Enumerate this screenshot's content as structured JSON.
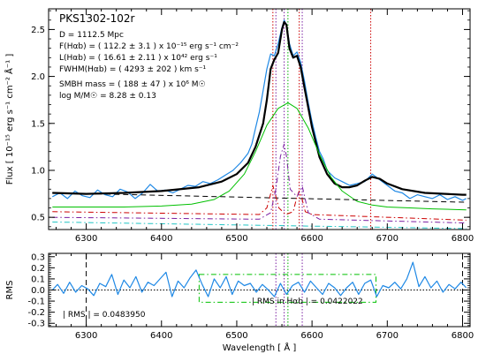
{
  "chart_data": [
    {
      "type": "line",
      "title": "PKS1302-102r",
      "ylabel": "Flux [ 10⁻¹⁵ erg s⁻¹ cm⁻² Å⁻¹ ]",
      "xlim": [
        6250,
        6810
      ],
      "ylim": [
        0.37,
        2.72
      ],
      "xticks": [
        6300,
        6400,
        6500,
        6600,
        6700,
        6800
      ],
      "yticks": [
        0.5,
        1.0,
        1.5,
        2.0,
        2.5
      ],
      "ytick_labels": [
        "0.5",
        "1.0",
        "1.5",
        "2.0",
        "2.5"
      ],
      "annotations": [
        "D = 1112.5 Mpc",
        "F(Hαb) = (  112.2 ±   3.1 ) x 10⁻¹⁵ erg s⁻¹ cm⁻²",
        "L(Hαb) = (  16.61 ±  2.11 ) x 10⁴² erg s⁻¹",
        "FWHM(Hαb) = (  4293 ±   202 ) km s⁻¹",
        "SMBH mass = (  188 ±   47 ) x 10⁶ M☉",
        "log M/M☉ =    8.28 ±  0.13"
      ],
      "vlines": [
        {
          "x": 6548,
          "color": "#cc0000",
          "style": "dotted"
        },
        {
          "x": 6552,
          "color": "#7b1fa2",
          "style": "dotted"
        },
        {
          "x": 6563,
          "color": "#7b1fa2",
          "style": "dotted"
        },
        {
          "x": 6568,
          "color": "#00b000",
          "style": "dotted"
        },
        {
          "x": 6583,
          "color": "#cc0000",
          "style": "dotted"
        },
        {
          "x": 6587,
          "color": "#7b1fa2",
          "style": "dotted"
        },
        {
          "x": 6678,
          "color": "#cc0000",
          "style": "dotted"
        }
      ],
      "series": [
        {
          "color": "#1e88e5",
          "style": "solid",
          "width": 1.2,
          "x": [
            6255,
            6265,
            6275,
            6285,
            6295,
            6305,
            6315,
            6325,
            6335,
            6345,
            6355,
            6365,
            6375,
            6385,
            6395,
            6405,
            6415,
            6425,
            6435,
            6445,
            6455,
            6465,
            6475,
            6485,
            6495,
            6505,
            6515,
            6520,
            6525,
            6530,
            6535,
            6540,
            6545,
            6550,
            6555,
            6560,
            6563,
            6566,
            6570,
            6575,
            6580,
            6585,
            6590,
            6595,
            6600,
            6605,
            6610,
            6615,
            6620,
            6630,
            6640,
            6650,
            6660,
            6670,
            6680,
            6690,
            6700,
            6710,
            6720,
            6730,
            6740,
            6750,
            6760,
            6770,
            6780,
            6790,
            6800,
            6805
          ],
          "y": [
            0.72,
            0.76,
            0.7,
            0.78,
            0.73,
            0.71,
            0.79,
            0.74,
            0.72,
            0.8,
            0.77,
            0.7,
            0.76,
            0.85,
            0.78,
            0.79,
            0.76,
            0.8,
            0.84,
            0.83,
            0.88,
            0.86,
            0.9,
            0.95,
            1.0,
            1.08,
            1.18,
            1.28,
            1.45,
            1.62,
            1.85,
            2.08,
            2.24,
            2.22,
            2.35,
            2.52,
            2.6,
            2.55,
            2.35,
            2.22,
            2.26,
            2.15,
            1.95,
            1.72,
            1.52,
            1.35,
            1.2,
            1.12,
            1.0,
            0.92,
            0.88,
            0.84,
            0.86,
            0.88,
            0.96,
            0.9,
            0.84,
            0.78,
            0.76,
            0.7,
            0.74,
            0.72,
            0.7,
            0.74,
            0.69,
            0.72,
            0.68,
            0.7
          ]
        },
        {
          "color": "#000000",
          "style": "solid",
          "width": 2.2,
          "x": [
            6255,
            6300,
            6350,
            6400,
            6450,
            6480,
            6500,
            6515,
            6525,
            6535,
            6540,
            6545,
            6550,
            6555,
            6560,
            6563,
            6566,
            6570,
            6575,
            6580,
            6585,
            6590,
            6600,
            6610,
            6620,
            6630,
            6640,
            6650,
            6660,
            6670,
            6680,
            6690,
            6700,
            6720,
            6750,
            6800,
            6805
          ],
          "y": [
            0.76,
            0.75,
            0.76,
            0.78,
            0.82,
            0.88,
            0.96,
            1.08,
            1.25,
            1.5,
            1.75,
            2.08,
            2.18,
            2.25,
            2.5,
            2.58,
            2.55,
            2.3,
            2.2,
            2.22,
            2.1,
            1.88,
            1.46,
            1.14,
            0.96,
            0.86,
            0.82,
            0.82,
            0.84,
            0.89,
            0.93,
            0.91,
            0.86,
            0.8,
            0.76,
            0.74,
            0.74
          ]
        },
        {
          "color": "#00c000",
          "style": "solid",
          "width": 1.0,
          "x": [
            6255,
            6300,
            6350,
            6400,
            6440,
            6470,
            6490,
            6510,
            6525,
            6540,
            6555,
            6568,
            6580,
            6595,
            6610,
            6625,
            6640,
            6660,
            6680,
            6700,
            6730,
            6760,
            6805
          ],
          "y": [
            0.61,
            0.61,
            0.61,
            0.62,
            0.64,
            0.69,
            0.78,
            0.96,
            1.2,
            1.48,
            1.66,
            1.72,
            1.66,
            1.45,
            1.17,
            0.93,
            0.78,
            0.67,
            0.63,
            0.61,
            0.6,
            0.59,
            0.58
          ]
        },
        {
          "color": "#000000",
          "style": "dashed",
          "width": 1.0,
          "x": [
            6255,
            6805
          ],
          "y": [
            0.76,
            0.66
          ]
        },
        {
          "color": "#cc0000",
          "style": "dashdot",
          "width": 1.0,
          "x": [
            6255,
            6530,
            6540,
            6545,
            6548,
            6551,
            6556,
            6565,
            6575,
            6580,
            6583,
            6586,
            6591,
            6600,
            6805
          ],
          "y": [
            0.56,
            0.53,
            0.6,
            0.75,
            0.84,
            0.75,
            0.6,
            0.53,
            0.56,
            0.72,
            0.78,
            0.72,
            0.56,
            0.53,
            0.47
          ]
        },
        {
          "color": "#7b1fa2",
          "style": "dashdot",
          "width": 1.0,
          "x": [
            6255,
            6530,
            6545,
            6552,
            6558,
            6563,
            6566,
            6571,
            6580,
            6587,
            6595,
            6610,
            6805
          ],
          "y": [
            0.5,
            0.48,
            0.55,
            0.8,
            1.15,
            1.28,
            1.15,
            0.8,
            0.72,
            0.83,
            0.55,
            0.48,
            0.44
          ]
        },
        {
          "color": "#20c4c4",
          "style": "dashdot",
          "width": 1.0,
          "x": [
            6255,
            6805
          ],
          "y": [
            0.45,
            0.38
          ]
        }
      ]
    },
    {
      "type": "line",
      "ylabel": "RMS",
      "xlabel": "Wavelength [ Å ]",
      "xlim": [
        6250,
        6810
      ],
      "ylim": [
        -0.33,
        0.33
      ],
      "xticks": [
        6300,
        6400,
        6500,
        6600,
        6700,
        6800
      ],
      "yticks": [
        -0.3,
        -0.2,
        -0.1,
        0.0,
        0.1,
        0.2,
        0.3
      ],
      "ytick_labels": [
        "-0.3",
        "-0.2",
        "-0.1",
        "0.0",
        "0.1",
        "0.2",
        "0.3"
      ],
      "annotations": [
        "| RMS | =   0.0483950",
        "| RMS in Hαb | =   0.0422022"
      ],
      "box": {
        "x": [
          6450,
          6685
        ],
        "y": [
          -0.11,
          0.14
        ],
        "color": "#00c000"
      },
      "vlines": [
        {
          "x": 6300,
          "color": "#000000",
          "style": "dashed"
        },
        {
          "x": 6800,
          "color": "#000000",
          "style": "dashed"
        },
        {
          "x": 6552,
          "color": "#7b1fa2",
          "style": "dotted"
        },
        {
          "x": 6563,
          "color": "#7b1fa2",
          "style": "dotted"
        },
        {
          "x": 6568,
          "color": "#00b000",
          "style": "dotted"
        },
        {
          "x": 6587,
          "color": "#7b1fa2",
          "style": "dotted"
        }
      ],
      "hline": 0,
      "series": [
        {
          "color": "#1e88e5",
          "style": "solid",
          "width": 1.2,
          "x": [
            6255,
            6262,
            6270,
            6278,
            6286,
            6294,
            6302,
            6310,
            6318,
            6326,
            6334,
            6342,
            6350,
            6358,
            6366,
            6374,
            6382,
            6390,
            6398,
            6406,
            6414,
            6422,
            6430,
            6438,
            6446,
            6454,
            6462,
            6470,
            6478,
            6486,
            6494,
            6502,
            6510,
            6518,
            6526,
            6534,
            6542,
            6550,
            6558,
            6566,
            6574,
            6582,
            6590,
            6598,
            6606,
            6614,
            6622,
            6630,
            6638,
            6646,
            6654,
            6662,
            6670,
            6678,
            6686,
            6694,
            6702,
            6710,
            6718,
            6726,
            6734,
            6742,
            6750,
            6758,
            6766,
            6774,
            6782,
            6790,
            6798,
            6805
          ],
          "y": [
            0.0,
            0.05,
            -0.03,
            0.07,
            -0.02,
            0.04,
            0.01,
            -0.05,
            0.06,
            0.03,
            0.14,
            -0.04,
            0.09,
            0.02,
            0.12,
            -0.02,
            0.07,
            0.04,
            0.1,
            0.16,
            -0.06,
            0.08,
            0.02,
            0.11,
            0.18,
            0.05,
            -0.06,
            0.1,
            0.02,
            0.12,
            -0.04,
            0.08,
            0.04,
            0.06,
            -0.02,
            0.05,
            0.0,
            -0.06,
            0.06,
            -0.04,
            0.04,
            0.07,
            -0.02,
            0.08,
            0.02,
            -0.04,
            0.06,
            0.02,
            -0.05,
            0.02,
            0.07,
            -0.04,
            0.06,
            0.09,
            -0.06,
            0.04,
            0.02,
            0.07,
            0.01,
            0.1,
            0.25,
            0.03,
            0.12,
            0.02,
            0.08,
            -0.02,
            0.05,
            0.01,
            0.07,
            0.02
          ]
        }
      ]
    }
  ]
}
